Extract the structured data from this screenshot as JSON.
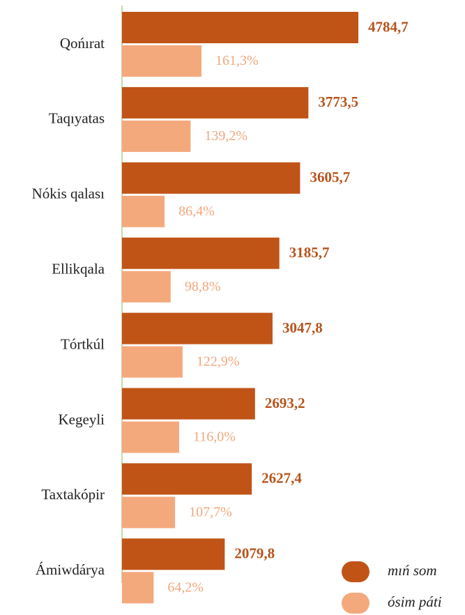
{
  "chart_data": {
    "type": "bar",
    "orientation": "horizontal",
    "categories": [
      "Qońırat",
      "Taqıyatas",
      "Nókis qalası",
      "Ellikqala",
      "Tórtkúl",
      "Kegeyli",
      "Taxtakópir",
      "Ámiwdárya"
    ],
    "series": [
      {
        "name": "mıń som",
        "color": "#c05417",
        "label_color": "#b5541c",
        "values": [
          4784.7,
          3773.5,
          3605.7,
          3185.7,
          3047.8,
          2693.2,
          2627.4,
          2079.8
        ],
        "value_labels": [
          "4784,7",
          "3773,5",
          "3605,7",
          "3185,7",
          "3047,8",
          "2693,2",
          "2627,4",
          "2079,8"
        ]
      },
      {
        "name": "ósim páti",
        "color": "#f4a97d",
        "label_color": "#f0a77e",
        "values": [
          161.3,
          139.2,
          86.4,
          98.8,
          122.9,
          116.0,
          107.7,
          64.2
        ],
        "value_labels": [
          "161,3%",
          "139,2%",
          "86,4%",
          "98,8%",
          "122,9%",
          "116,0%",
          "107,7%",
          "64,2%"
        ]
      }
    ],
    "legend": "lower right"
  }
}
